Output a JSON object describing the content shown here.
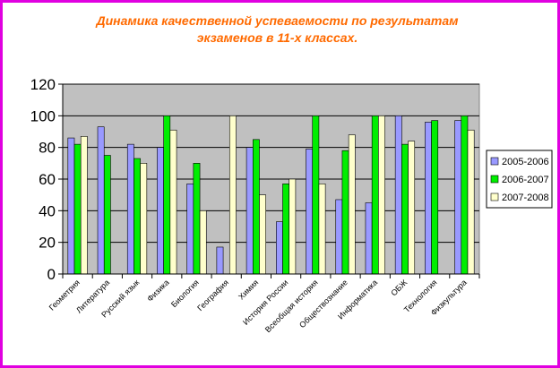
{
  "chart_data": {
    "type": "bar",
    "title_line1": "Динамика качественной успеваемости по результатам",
    "title_line2": "экзаменов в 11-х классах.",
    "categories": [
      "Геометрия",
      "Литература",
      "Русский язык",
      "Физика",
      "Биология",
      "География",
      "Химия",
      "История России",
      "Всеобщая история",
      "Обществознание",
      "Информатика",
      "ОБЖ",
      "Технология",
      "Физкультура"
    ],
    "series": [
      {
        "name": "2005-2006",
        "color": "#9999ff",
        "values": [
          86,
          93,
          82,
          80,
          57,
          17,
          80,
          33,
          79,
          47,
          45,
          100,
          96,
          97
        ]
      },
      {
        "name": "2006-2007",
        "color": "#00ee00",
        "values": [
          82,
          75,
          73,
          100,
          70,
          null,
          85,
          57,
          100,
          78,
          100,
          82,
          97,
          100
        ]
      },
      {
        "name": "2007-2008",
        "color": "#ffffcc",
        "values": [
          87,
          null,
          70,
          91,
          40,
          100,
          50,
          60,
          57,
          88,
          100,
          84,
          null,
          91
        ]
      }
    ],
    "ylim": [
      0,
      120
    ],
    "yticks": [
      "0",
      "20",
      "40",
      "60",
      "80",
      "100",
      "120"
    ],
    "grid": true,
    "plot_background": "#c0c0c0",
    "legend_position": "right"
  }
}
